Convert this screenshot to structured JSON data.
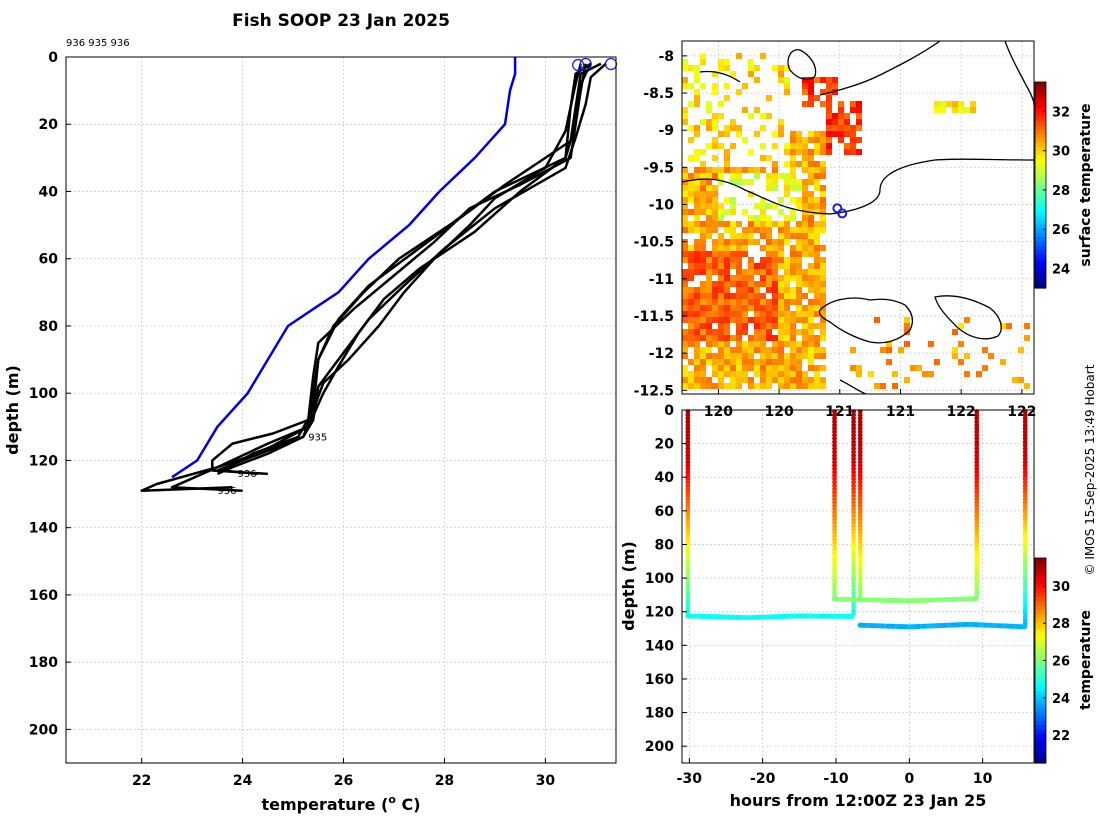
{
  "figure": {
    "title": "Fish SOOP 23 Jan 2025",
    "watermark": "© IMOS 15-Sep-2025 13:49 Hobart"
  },
  "chart_data": [
    {
      "id": "profiles",
      "type": "line",
      "title": "Fish SOOP 23 Jan 2025",
      "xlabel": "temperature (o C)",
      "xlabel_base": "temperature (",
      "xlabel_sup": "o",
      "xlabel_tail": " C)",
      "ylabel": "depth (m)",
      "xlim": [
        20.5,
        31.4
      ],
      "ylim": [
        210,
        0
      ],
      "xticks": [
        22,
        24,
        26,
        28,
        30
      ],
      "yticks": [
        0,
        20,
        40,
        60,
        80,
        100,
        120,
        140,
        160,
        180,
        200
      ],
      "grid": true,
      "header_ids": "936 935 936",
      "annotations": [
        {
          "text": "935",
          "x": 25.3,
          "y": 114
        },
        {
          "text": "936",
          "x": 23.9,
          "y": 125
        },
        {
          "text": "936",
          "x": 23.5,
          "y": 130
        }
      ],
      "surface_markers": [
        {
          "x": 30.65,
          "y": 1.5
        },
        {
          "x": 30.8,
          "y": 1.2
        },
        {
          "x": 31.3,
          "y": 1.2
        }
      ],
      "climatology": {
        "name": "climatology",
        "color": "#0000dd",
        "points": [
          [
            29.4,
            0
          ],
          [
            29.4,
            5
          ],
          [
            29.3,
            10
          ],
          [
            29.2,
            20
          ],
          [
            28.6,
            30
          ],
          [
            27.9,
            40
          ],
          [
            27.3,
            50
          ],
          [
            26.5,
            60
          ],
          [
            25.9,
            70
          ],
          [
            25.4,
            75
          ],
          [
            24.9,
            80
          ],
          [
            24.5,
            90
          ],
          [
            24.1,
            100
          ],
          [
            23.5,
            110
          ],
          [
            23.1,
            120
          ],
          [
            22.6,
            125
          ]
        ]
      },
      "series": [
        {
          "name": "profile 1",
          "color": "#000000",
          "points": [
            [
              30.9,
              2
            ],
            [
              30.6,
              5
            ],
            [
              30.5,
              15
            ],
            [
              30.4,
              30
            ],
            [
              29.0,
              40
            ],
            [
              28.1,
              50
            ],
            [
              27.1,
              60
            ],
            [
              26.4,
              70
            ],
            [
              25.8,
              80
            ],
            [
              25.5,
              90
            ],
            [
              25.4,
              100
            ],
            [
              25.3,
              110
            ],
            [
              24.5,
              115
            ],
            [
              23.5,
              122
            ],
            [
              22.6,
              128
            ],
            [
              24.0,
              129
            ]
          ]
        },
        {
          "name": "profile 2",
          "color": "#000000",
          "points": [
            [
              31.1,
              2
            ],
            [
              30.7,
              5
            ],
            [
              30.6,
              15
            ],
            [
              30.5,
              25
            ],
            [
              29.2,
              38
            ],
            [
              28.3,
              48
            ],
            [
              27.4,
              58
            ],
            [
              26.5,
              68
            ],
            [
              25.9,
              78
            ],
            [
              25.5,
              90
            ],
            [
              25.4,
              105
            ],
            [
              25.1,
              113
            ],
            [
              24.2,
              118
            ],
            [
              23.6,
              123
            ],
            [
              24.3,
              124
            ]
          ]
        },
        {
          "name": "profile 3",
          "color": "#000000",
          "points": [
            [
              30.8,
              2
            ],
            [
              30.7,
              10
            ],
            [
              30.5,
              30
            ],
            [
              29.5,
              38
            ],
            [
              28.5,
              45
            ],
            [
              27.8,
              55
            ],
            [
              27.0,
              65
            ],
            [
              26.2,
              75
            ],
            [
              25.5,
              85
            ],
            [
              25.4,
              95
            ],
            [
              25.3,
              108
            ],
            [
              24.6,
              112
            ],
            [
              23.8,
              115
            ],
            [
              23.4,
              120
            ],
            [
              23.4,
              123
            ],
            [
              24.5,
              124
            ]
          ]
        },
        {
          "name": "profile 4",
          "color": "#000000",
          "points": [
            [
              30.7,
              2
            ],
            [
              30.6,
              8
            ],
            [
              30.4,
              22
            ],
            [
              30.0,
              33
            ],
            [
              29.0,
              42
            ],
            [
              28.5,
              50
            ],
            [
              27.8,
              60
            ],
            [
              27.2,
              70
            ],
            [
              26.7,
              80
            ],
            [
              26.1,
              90
            ],
            [
              25.6,
              97
            ],
            [
              25.4,
              105
            ],
            [
              25.2,
              113
            ],
            [
              24.0,
              120
            ],
            [
              23.5,
              123
            ]
          ]
        },
        {
          "name": "profile 5",
          "color": "#000000",
          "points": [
            [
              30.9,
              2
            ],
            [
              30.7,
              8
            ],
            [
              30.6,
              20
            ],
            [
              30.4,
              30
            ],
            [
              29.5,
              40
            ],
            [
              28.6,
              52
            ],
            [
              27.5,
              63
            ],
            [
              26.8,
              72
            ],
            [
              26.3,
              82
            ],
            [
              25.9,
              92
            ],
            [
              25.6,
              100
            ],
            [
              25.3,
              110
            ],
            [
              24.3,
              118
            ],
            [
              23.5,
              122
            ],
            [
              22.3,
              127
            ],
            [
              22.0,
              129
            ],
            [
              23.8,
              128
            ]
          ]
        },
        {
          "name": "profile 6",
          "color": "#000000",
          "points": [
            [
              31.2,
              2
            ],
            [
              30.9,
              6
            ],
            [
              30.8,
              14
            ],
            [
              30.6,
              24
            ],
            [
              30.4,
              33
            ],
            [
              29.0,
              45
            ],
            [
              28.0,
              57
            ],
            [
              27.2,
              68
            ],
            [
              26.5,
              78
            ],
            [
              26.0,
              88
            ],
            [
              25.5,
              98
            ],
            [
              25.4,
              108
            ],
            [
              25.2,
              113
            ],
            [
              24.5,
              118
            ],
            [
              23.8,
              122
            ],
            [
              23.5,
              124
            ]
          ]
        }
      ]
    },
    {
      "id": "sst-map",
      "type": "heatmap",
      "xticks": [
        120,
        120.5,
        121,
        121.5,
        122,
        122.5
      ],
      "xtick_labels": [
        "120",
        "120",
        "121",
        "121",
        "122",
        "122"
      ],
      "yticks": [
        -8,
        -8.5,
        -9,
        -9.5,
        -10,
        -10.5,
        -11,
        -11.5,
        -12,
        -12.5
      ],
      "xlim": [
        119.7,
        122.6
      ],
      "ylim": [
        -12.55,
        -7.8
      ],
      "colorbar": {
        "label": "surface temperature",
        "range": [
          23,
          33.5
        ],
        "ticks": [
          24,
          26,
          28,
          30,
          32
        ]
      },
      "markers": [
        {
          "lon": 120.98,
          "lat": -10.05
        },
        {
          "lon": 121.02,
          "lat": -10.12
        }
      ],
      "patches": [
        {
          "lon": [
            119.7,
            120.9
          ],
          "lat": [
            -12.5,
            -9.0
          ],
          "temp": 30.4,
          "density": 0.85
        },
        {
          "lon": [
            119.7,
            120.5
          ],
          "lat": [
            -11.8,
            -10.6
          ],
          "temp": 31.2,
          "density": 0.9
        },
        {
          "lon": [
            120.0,
            120.7
          ],
          "lat": [
            -10.2,
            -9.6
          ],
          "temp": 29.3,
          "density": 0.5
        },
        {
          "lon": [
            120.9,
            121.2
          ],
          "lat": [
            -9.3,
            -8.6
          ],
          "temp": 31.6,
          "density": 0.85
        },
        {
          "lon": [
            120.7,
            121.0
          ],
          "lat": [
            -8.7,
            -8.3
          ],
          "temp": 31.6,
          "density": 0.8
        },
        {
          "lon": [
            121.8,
            122.1
          ],
          "lat": [
            -8.8,
            -8.6
          ],
          "temp": 29.8,
          "density": 0.9
        },
        {
          "lon": [
            121.3,
            121.6
          ],
          "lat": [
            -12.3,
            -11.9
          ],
          "temp": 31.5,
          "density": 0.75
        },
        {
          "lon": [
            119.7,
            120.6
          ],
          "lat": [
            -9.5,
            -8.0
          ],
          "temp": 29.9,
          "density": 0.28
        },
        {
          "lon": [
            121.1,
            122.6
          ],
          "lat": [
            -12.5,
            -11.5
          ],
          "temp": 30.5,
          "density": 0.12
        }
      ]
    },
    {
      "id": "depth-time",
      "type": "scatter",
      "xlabel": "hours from 12:00Z 23 Jan 25",
      "ylabel": "depth (m)",
      "xlim": [
        -31,
        17
      ],
      "ylim": [
        210,
        0
      ],
      "xticks": [
        -30,
        -20,
        -10,
        0,
        10
      ],
      "yticks": [
        0,
        20,
        40,
        60,
        80,
        100,
        120,
        140,
        160,
        180,
        200
      ],
      "colorbar": {
        "label": "temperature",
        "range": [
          20.5,
          31.5
        ],
        "ticks": [
          22,
          24,
          26,
          28,
          30
        ]
      },
      "casts": [
        {
          "t": -30.2,
          "bottom": 122,
          "bottom_temp": 24.8
        },
        {
          "t": -10.2,
          "bottom": 112,
          "bottom_temp": 26.0
        },
        {
          "t": -7.6,
          "bottom": 122,
          "bottom_temp": 24.8
        },
        {
          "t": -6.7,
          "bottom": 113,
          "bottom_temp": 26.0
        },
        {
          "t": 9.2,
          "bottom": 112,
          "bottom_temp": 26.0
        },
        {
          "t": 15.8,
          "bottom": 128,
          "bottom_temp": 23.8
        }
      ],
      "tracks": [
        {
          "t": [
            -30.2,
            -22,
            -15,
            -7.6
          ],
          "depth": [
            122.5,
            123.5,
            122.5,
            122.8
          ],
          "temp": 24.7
        },
        {
          "t": [
            -10.2,
            0,
            9.2
          ],
          "depth": [
            112.5,
            113.5,
            112.2
          ],
          "temp": 26.1
        },
        {
          "t": [
            -6.7,
            0,
            8,
            15.8
          ],
          "depth": [
            128,
            129,
            127.5,
            129
          ],
          "temp": 23.8
        }
      ]
    }
  ]
}
